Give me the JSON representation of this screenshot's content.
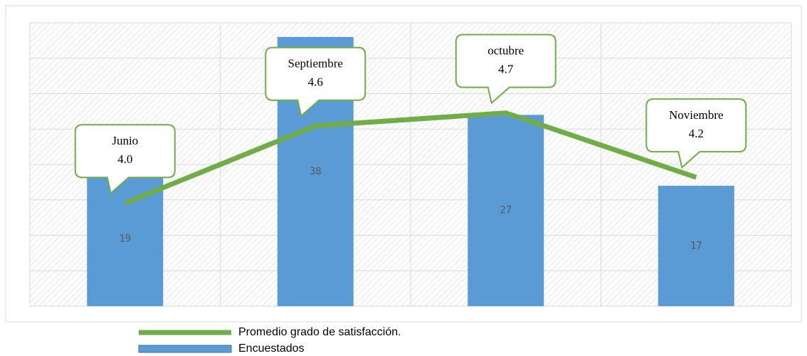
{
  "chart_data": {
    "type": "bar_line",
    "categories": [
      "Junio",
      "Septiembre",
      "octubre",
      "Noviembre"
    ],
    "series": [
      {
        "name": "Encuestados",
        "type": "bar",
        "color": "#5b9bd5",
        "values": [
          19,
          38,
          27,
          17
        ]
      },
      {
        "name": "Promedio grado de satisfacción.",
        "type": "line",
        "axis": "y2",
        "color": "#70ad47",
        "values": [
          4.0,
          4.6,
          4.7,
          4.2
        ],
        "value_labels": [
          "4.0",
          "4.6",
          "4.7",
          "4.2"
        ]
      }
    ],
    "ylim": [
      0,
      40
    ],
    "yticks": [
      0,
      5,
      10,
      15,
      20,
      25,
      30,
      35,
      40
    ],
    "y2lim": [
      3.2,
      5.4
    ],
    "grid": true,
    "legend": "bottom"
  }
}
